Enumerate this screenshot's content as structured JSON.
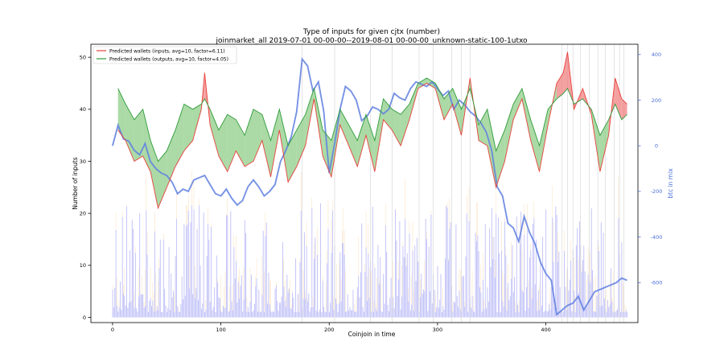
{
  "chart_data": {
    "type": "line",
    "title": "Type of inputs for given cjtx (number)",
    "subtitle": "joinmarket_all 2019-07-01 00-00-00--2019-08-01 00-00-00_unknown-static-100-1utxo",
    "xlabel": "Coinjoin in time",
    "ylabel": "Number of inputs",
    "y2label": "btc in mix",
    "xlim": [
      -20,
      485
    ],
    "ylim": [
      -1,
      52.5
    ],
    "y2lim": [
      -775,
      445
    ],
    "xticks": [
      0,
      100,
      200,
      300,
      400
    ],
    "yticks": [
      0,
      10,
      20,
      30,
      40,
      50
    ],
    "y2ticks": [
      -600,
      -400,
      -200,
      0,
      200,
      400
    ],
    "legend_position": "top-left",
    "grid": false,
    "colors": {
      "inputs": "#e8413a",
      "outputs": "#2f9b3a",
      "fill": "#8fce88",
      "fill_red": "#f08080",
      "btc": "#5f7fe0",
      "bars_blue": "#8a8af2",
      "bars_orange": "#f7c98a",
      "vlines": "#d8d8d8"
    },
    "series": [
      {
        "name": "Predicted wallets (inputs, avg=10, factor=6.11)",
        "x": [
          5,
          12,
          20,
          28,
          35,
          42,
          50,
          58,
          66,
          74,
          82,
          85,
          90,
          98,
          106,
          114,
          122,
          130,
          138,
          146,
          154,
          162,
          170,
          178,
          186,
          194,
          202,
          210,
          218,
          226,
          234,
          242,
          250,
          258,
          266,
          274,
          282,
          290,
          298,
          306,
          314,
          322,
          330,
          338,
          346,
          354,
          362,
          370,
          378,
          386,
          394,
          402,
          410,
          416,
          420,
          426,
          434,
          442,
          450,
          458,
          464,
          470,
          475
        ],
        "values": [
          36,
          34,
          30,
          31,
          28,
          21,
          25,
          29,
          32,
          34,
          40,
          47,
          37,
          31,
          28,
          32,
          29,
          30,
          34,
          27,
          36,
          26,
          29,
          33,
          42,
          31,
          27,
          37,
          33,
          29,
          35,
          28,
          38,
          36,
          33,
          38,
          44,
          45,
          44,
          38,
          41,
          35,
          46,
          34,
          33,
          25,
          30,
          38,
          42,
          34,
          28,
          37,
          45,
          47,
          51,
          40,
          44,
          39,
          28,
          35,
          46,
          42,
          41
        ]
      },
      {
        "name": "Predicted wallets (outputs, avg=10, factor=4.05)",
        "x": [
          5,
          12,
          20,
          28,
          35,
          42,
          50,
          58,
          66,
          74,
          82,
          85,
          90,
          98,
          106,
          114,
          122,
          130,
          138,
          146,
          154,
          162,
          170,
          178,
          186,
          194,
          202,
          210,
          218,
          226,
          234,
          242,
          250,
          258,
          266,
          274,
          282,
          290,
          298,
          306,
          314,
          322,
          330,
          338,
          346,
          354,
          362,
          370,
          378,
          386,
          394,
          402,
          410,
          416,
          420,
          426,
          434,
          442,
          450,
          458,
          464,
          470,
          475
        ],
        "values": [
          44,
          41,
          38,
          40,
          34,
          30,
          32,
          36,
          41,
          40,
          41,
          42,
          40,
          36,
          39,
          38,
          35,
          40,
          39,
          34,
          40,
          33,
          36,
          39,
          44,
          36,
          34,
          40,
          37,
          34,
          39,
          34,
          42,
          40,
          39,
          41,
          45,
          46,
          45,
          42,
          44,
          40,
          44,
          37,
          40,
          32,
          36,
          41,
          44,
          38,
          33,
          40,
          42,
          43,
          44,
          41,
          42,
          40,
          35,
          38,
          41,
          38,
          39
        ]
      },
      {
        "name": "btc in mix",
        "axis": "right",
        "x": [
          0,
          5,
          10,
          15,
          20,
          25,
          30,
          35,
          40,
          45,
          50,
          55,
          60,
          65,
          70,
          75,
          80,
          85,
          90,
          95,
          100,
          105,
          110,
          115,
          120,
          125,
          130,
          135,
          140,
          145,
          150,
          155,
          160,
          165,
          170,
          175,
          180,
          185,
          190,
          195,
          200,
          205,
          210,
          215,
          220,
          225,
          230,
          235,
          240,
          245,
          250,
          255,
          260,
          265,
          270,
          275,
          280,
          285,
          290,
          295,
          300,
          305,
          310,
          315,
          320,
          325,
          330,
          335,
          340,
          345,
          350,
          355,
          360,
          365,
          370,
          375,
          380,
          385,
          390,
          395,
          400,
          405,
          410,
          415,
          420,
          425,
          430,
          435,
          440,
          445,
          450,
          455,
          460,
          465,
          470,
          475
        ],
        "values": [
          0,
          90,
          30,
          20,
          -20,
          -40,
          10,
          -70,
          -100,
          -120,
          -130,
          -160,
          -210,
          -190,
          -200,
          -150,
          -140,
          -130,
          -170,
          -210,
          -220,
          -190,
          -230,
          -260,
          -240,
          -180,
          -150,
          -180,
          -220,
          -200,
          -170,
          -70,
          -20,
          40,
          150,
          380,
          350,
          240,
          280,
          150,
          -120,
          10,
          160,
          260,
          240,
          200,
          110,
          130,
          170,
          160,
          140,
          160,
          230,
          210,
          200,
          250,
          280,
          270,
          260,
          280,
          250,
          220,
          240,
          160,
          200,
          180,
          150,
          130,
          100,
          60,
          -20,
          -180,
          -220,
          -340,
          -360,
          -420,
          -310,
          -380,
          -430,
          -510,
          -560,
          -590,
          -740,
          -720,
          -700,
          -690,
          -660,
          -720,
          -680,
          -640,
          -630,
          -620,
          -610,
          -600,
          -580,
          -590
        ]
      }
    ],
    "legend": [
      "Predicted wallets (inputs, avg=10, factor=6.11)",
      "Predicted wallets (outputs, avg=10, factor=4.05)"
    ]
  }
}
